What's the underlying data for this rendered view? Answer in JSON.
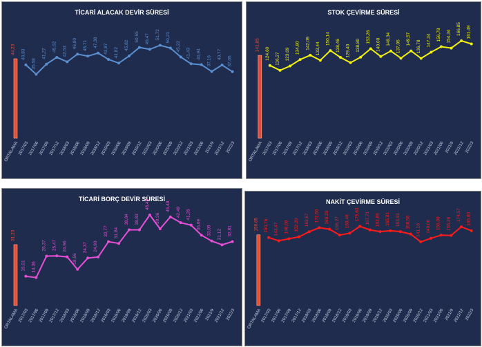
{
  "chart_data": [
    {
      "type": "bar-line",
      "title": "TİCARİ ALACAK DEVİR SÜRESİ",
      "bar_categories": [
        "ORTALAMA"
      ],
      "bar_values": [
        44.23
      ],
      "bar_value_labels": [
        "44,23"
      ],
      "bar_color": "#e0503a",
      "categories": [
        "2017/03",
        "2017/06",
        "2017/09",
        "2017/12",
        "2018/03",
        "2018/06",
        "2018/09",
        "2018/12",
        "2019/03",
        "2019/06",
        "2019/09",
        "2019/12",
        "2020/03",
        "2020/06",
        "2020/09",
        "2020/12",
        "2021/03",
        "2021/06",
        "2021/9",
        "2021/12",
        "2022/3"
      ],
      "values": [
        40.83,
        35.58,
        41.27,
        45.02,
        42.53,
        46.8,
        45.71,
        47.38,
        43.87,
        41.82,
        45.82,
        50.55,
        49.47,
        51.72,
        50.21,
        45.22,
        41.43,
        40.94,
        37.16,
        40.77,
        37.05
      ],
      "value_labels": [
        "40,83",
        "35,58",
        "41,27",
        "45,02",
        "42,53",
        "46,80",
        "45,71",
        "47,38",
        "43,87",
        "41,82",
        "45,82",
        "50,55",
        "49,47",
        "51,72",
        "50,21",
        "45,22",
        "41,43",
        "40,94",
        "37,16",
        "40,77",
        "37,05"
      ],
      "color": "#5b8fd0",
      "ylim": [
        0,
        65
      ]
    },
    {
      "type": "bar-line",
      "title": "STOK ÇEVİRME SÜRESİ",
      "bar_categories": [
        "ORTALAMA"
      ],
      "bar_values": [
        141.85
      ],
      "bar_value_labels": [
        "141,85"
      ],
      "bar_color": "#e0503a",
      "categories": [
        "2017/03",
        "2017/06",
        "2017/09",
        "2017/12",
        "2018/03",
        "2018/06",
        "2018/09",
        "2018/12",
        "2019/03",
        "2019/06",
        "2019/09",
        "2019/12",
        "2020/03",
        "2020/06",
        "2020/09",
        "2020/12",
        "2021/03",
        "2021/06",
        "2021/9",
        "2021/12",
        "2022/3"
      ],
      "values": [
        124.6,
        116.27,
        123.69,
        134.8,
        142.09,
        133.44,
        150.14,
        138.46,
        129.4,
        138.8,
        153.26,
        140.0,
        149.34,
        137.05,
        149.57,
        136.78,
        147.34,
        156.78,
        154.34,
        166.85,
        161.49
      ],
      "value_labels": [
        "124,60",
        "116,27",
        "123,69",
        "134,80",
        "142,09",
        "133,44",
        "150,14",
        "138,46",
        "129,40",
        "138,80",
        "153,26",
        "140,00",
        "149,34",
        "137,05",
        "149,57",
        "136,78",
        "147,34",
        "156,78",
        "154,34",
        "166,85",
        "161,49"
      ],
      "color": "#f2f20a",
      "ylim": [
        0,
        200
      ]
    },
    {
      "type": "bar-line",
      "title": "TİCARİ BORÇ DEVİR SÜRESİ",
      "bar_categories": [
        "ORTALAMA"
      ],
      "bar_values": [
        31.23
      ],
      "bar_value_labels": [
        "31,23"
      ],
      "bar_color": "#e0503a",
      "categories": [
        "2017/03",
        "2017/06",
        "2017/09",
        "2017/12",
        "2018/03",
        "2018/06",
        "2018/09",
        "2018/12",
        "2019/03",
        "2019/06",
        "2019/09",
        "2019/12",
        "2020/03",
        "2020/06",
        "2020/09",
        "2020/12",
        "2021/03",
        "2021/06",
        "2021/9",
        "2021/12",
        "2022/3"
      ],
      "values": [
        15.01,
        14.36,
        25.37,
        25.47,
        24.96,
        18.56,
        24.37,
        24.9,
        32.77,
        31.84,
        38.84,
        38.83,
        46.46,
        39.36,
        45.48,
        42.49,
        41.26,
        36.09,
        33.09,
        31.12,
        32.81
      ],
      "value_labels": [
        "15,01",
        "14,36",
        "25,37",
        "25,47",
        "24,96",
        "18,56",
        "24,37",
        "24,90",
        "32,77",
        "31,84",
        "38,84",
        "38,83",
        "46,46",
        "39,36",
        "45,48",
        "42,49",
        "41,26",
        "36,09",
        "33,09",
        "31,12",
        "32,81"
      ],
      "color": "#e84fd6",
      "ylim": [
        0,
        50
      ]
    },
    {
      "type": "bar-line",
      "title": "NAKİT ÇEVİRME SÜRESİ",
      "bar_categories": [
        "ORTALAMA"
      ],
      "bar_values": [
        156.85
      ],
      "bar_value_labels": [
        "156,85"
      ],
      "bar_color": "#e0503a",
      "categories": [
        "2017/03",
        "2017/06",
        "2017/09",
        "2017/12",
        "2018/03",
        "2018/06",
        "2018/09",
        "2018/12",
        "2019/03",
        "2019/06",
        "2019/09",
        "2019/12",
        "2020/03",
        "2020/06",
        "2020/09",
        "2020/12",
        "2021/03",
        "2021/06",
        "2021/9",
        "2021/12",
        "2022/3"
      ],
      "values": [
        150.76,
        143.47,
        148.08,
        152.29,
        163.67,
        172.56,
        169.29,
        156.27,
        160.48,
        175.63,
        167.71,
        163.86,
        165.81,
        163.91,
        158.56,
        141.16,
        149.06,
        156.08,
        155.36,
        174.57,
        165.8
      ],
      "value_labels": [
        "150,76",
        "143,47",
        "148,08",
        "152,29",
        "163,67",
        "172,56",
        "169,29",
        "156,27",
        "160,48",
        "175,63",
        "167,71",
        "163,86",
        "165,81",
        "163,91",
        "158,56",
        "141,16",
        "149,06",
        "156,08",
        "155,36",
        "174,57",
        "165,80"
      ],
      "color": "#ff1a1a",
      "ylim": [
        0,
        210
      ]
    }
  ]
}
